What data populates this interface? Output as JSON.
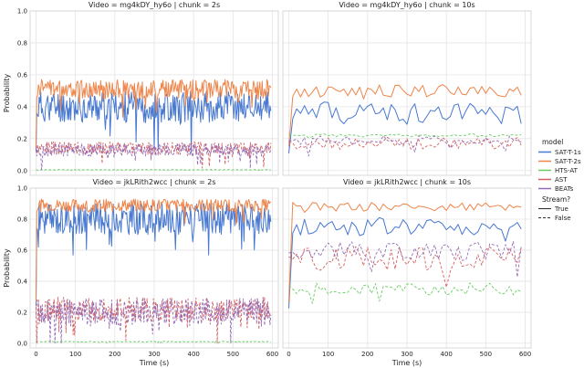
{
  "chart_data": {
    "type": "line",
    "ylabel": "Probability",
    "xlabel": "Time (s)",
    "xlim": [
      -15,
      615
    ],
    "ylim": [
      -0.03,
      1.0
    ],
    "xticks": [
      "0",
      "100",
      "200",
      "300",
      "400",
      "500",
      "600"
    ],
    "yticks": [
      "0.0",
      "0.2",
      "0.4",
      "0.6",
      "0.8",
      "1.0"
    ],
    "grid": true,
    "legend": {
      "placement": "right",
      "title": "model",
      "entries": [
        "SAT-T-1s",
        "SAT-T-2s",
        "HTS-AT",
        "AST",
        "BEATs"
      ],
      "style_title": "Stream?",
      "style_entries": [
        "True",
        "False"
      ]
    },
    "colors": {
      "SAT-T-1s": "#4878d0",
      "SAT-T-2s": "#ee854a",
      "HTS-AT": "#6acc64",
      "AST": "#d65f5f",
      "BEATs": "#956cb4"
    },
    "panels": [
      {
        "title": "Video = mg4kDY_hy6o | chunk = 2s",
        "chunk": 2,
        "series": [
          {
            "name": "SAT-T-1s",
            "stream": true,
            "base": 0.4,
            "noise": 0.1,
            "seed": 11
          },
          {
            "name": "SAT-T-2s",
            "stream": true,
            "base": 0.51,
            "noise": 0.06,
            "seed": 12
          },
          {
            "name": "HTS-AT",
            "stream": false,
            "base": 0.005,
            "noise": 0.002,
            "seed": 13
          },
          {
            "name": "AST",
            "stream": false,
            "base": 0.14,
            "noise": 0.04,
            "seed": 14
          },
          {
            "name": "BEATs",
            "stream": false,
            "base": 0.13,
            "noise": 0.04,
            "seed": 15
          }
        ]
      },
      {
        "title": "Video = mg4kDY_hy6o | chunk = 10s",
        "chunk": 10,
        "series": [
          {
            "name": "SAT-T-1s",
            "stream": true,
            "base": 0.36,
            "noise": 0.07,
            "seed": 21
          },
          {
            "name": "SAT-T-2s",
            "stream": true,
            "base": 0.5,
            "noise": 0.04,
            "seed": 22
          },
          {
            "name": "HTS-AT",
            "stream": false,
            "base": 0.22,
            "noise": 0.01,
            "seed": 23
          },
          {
            "name": "AST",
            "stream": false,
            "base": 0.17,
            "noise": 0.04,
            "seed": 24
          },
          {
            "name": "BEATs",
            "stream": false,
            "base": 0.19,
            "noise": 0.03,
            "seed": 25
          }
        ]
      },
      {
        "title": "Video = jkLRith2wcc | chunk = 2s",
        "chunk": 2,
        "series": [
          {
            "name": "SAT-T-1s",
            "stream": true,
            "base": 0.8,
            "noise": 0.1,
            "seed": 31
          },
          {
            "name": "SAT-T-2s",
            "stream": true,
            "base": 0.89,
            "noise": 0.04,
            "seed": 32
          },
          {
            "name": "HTS-AT",
            "stream": false,
            "base": 0.01,
            "noise": 0.003,
            "seed": 33
          },
          {
            "name": "AST",
            "stream": false,
            "base": 0.22,
            "noise": 0.08,
            "seed": 34
          },
          {
            "name": "BEATs",
            "stream": false,
            "base": 0.2,
            "noise": 0.09,
            "seed": 35
          }
        ]
      },
      {
        "title": "Video = jkLRith2wcc | chunk = 10s",
        "chunk": 10,
        "series": [
          {
            "name": "SAT-T-1s",
            "stream": true,
            "base": 0.75,
            "noise": 0.06,
            "seed": 41
          },
          {
            "name": "SAT-T-2s",
            "stream": true,
            "base": 0.88,
            "noise": 0.03,
            "seed": 42
          },
          {
            "name": "HTS-AT",
            "stream": false,
            "base": 0.35,
            "noise": 0.04,
            "seed": 43
          },
          {
            "name": "AST",
            "stream": false,
            "base": 0.55,
            "noise": 0.08,
            "seed": 44
          },
          {
            "name": "BEATs",
            "stream": false,
            "base": 0.6,
            "noise": 0.06,
            "seed": 45
          }
        ]
      }
    ]
  }
}
